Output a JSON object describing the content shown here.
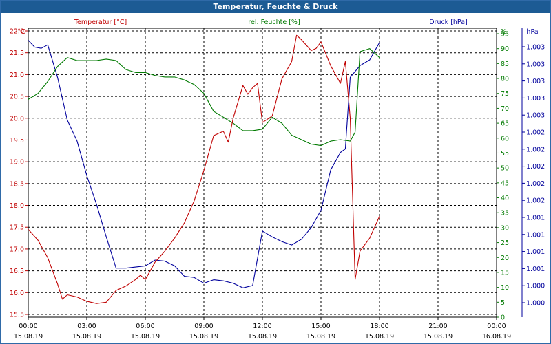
{
  "window": {
    "title": "Temperatur, Feuchte & Druck"
  },
  "colors": {
    "temperature": "#c00000",
    "humidity": "#007a00",
    "pressure": "#00009c",
    "grid": "#000000"
  },
  "chart_data": {
    "type": "line",
    "title": "Temperatur, Feuchte & Druck",
    "grid": true,
    "x_axis": {
      "range": [
        "00:00",
        "24:00"
      ],
      "ticks": [
        {
          "time": "00:00",
          "date": "15.08.19"
        },
        {
          "time": "03:00",
          "date": "15.08.19"
        },
        {
          "time": "06:00",
          "date": "15.08.19"
        },
        {
          "time": "09:00",
          "date": "15.08.19"
        },
        {
          "time": "12:00",
          "date": "15.08.19"
        },
        {
          "time": "15:00",
          "date": "15.08.19"
        },
        {
          "time": "18:00",
          "date": "15.08.19"
        },
        {
          "time": "21:00",
          "date": "15.08.19"
        },
        {
          "time": "00:00",
          "date": "16.08.19"
        }
      ]
    },
    "axes": {
      "temperature": {
        "label": "Temperatur [°C]",
        "unit": "°C",
        "side": "left",
        "range": [
          15.5,
          22.0
        ],
        "ticks": [
          "15.5",
          "16.0",
          "16.5",
          "17.0",
          "17.5",
          "18.0",
          "18.5",
          "19.0",
          "19.5",
          "20.0",
          "20.5",
          "21.0",
          "21.5",
          "22.0"
        ]
      },
      "humidity": {
        "label": "rel. Feuchte [%]",
        "unit": "%",
        "side": "right",
        "range": [
          0,
          95
        ],
        "ticks": [
          "0",
          "5",
          "10",
          "15",
          "20",
          "25",
          "30",
          "35",
          "40",
          "45",
          "50",
          "55",
          "60",
          "65",
          "70",
          "75",
          "80",
          "85",
          "90",
          "95"
        ]
      },
      "pressure": {
        "label": "Druck [hPa]",
        "unit": "hPa",
        "side": "right-outer",
        "ticks": [
          "1.000",
          "1.000",
          "1.001",
          "1.001",
          "1.001",
          "1.001",
          "1.002",
          "1.002",
          "1.002",
          "1.002",
          "1.002",
          "1.003",
          "1.003",
          "1.003",
          "1.003",
          "1.003"
        ]
      }
    },
    "series": [
      {
        "name": "Temperatur [°C]",
        "axis": "temperature",
        "x": [
          "00:00",
          "00:30",
          "01:00",
          "01:30",
          "01:45",
          "02:00",
          "02:30",
          "03:00",
          "03:30",
          "04:00",
          "04:30",
          "05:00",
          "05:30",
          "05:45",
          "06:00",
          "06:30",
          "07:00",
          "07:30",
          "08:00",
          "08:30",
          "09:00",
          "09:30",
          "10:00",
          "10:15",
          "10:30",
          "11:00",
          "11:15",
          "11:30",
          "11:45",
          "12:00",
          "12:30",
          "13:00",
          "13:30",
          "13:45",
          "14:00",
          "14:30",
          "14:45",
          "15:00",
          "15:30",
          "16:00",
          "16:15",
          "16:30",
          "16:45",
          "17:00",
          "17:30",
          "18:00"
        ],
        "values": [
          17.45,
          17.2,
          16.8,
          16.2,
          15.85,
          15.95,
          15.9,
          15.8,
          15.75,
          15.78,
          16.05,
          16.15,
          16.3,
          16.4,
          16.3,
          16.7,
          16.95,
          17.25,
          17.6,
          18.1,
          18.8,
          19.6,
          19.7,
          19.45,
          20.0,
          20.75,
          20.55,
          20.7,
          20.8,
          19.9,
          20.05,
          20.9,
          21.3,
          21.9,
          21.8,
          21.55,
          21.6,
          21.75,
          21.2,
          20.8,
          21.3,
          20.0,
          16.3,
          16.95,
          17.25,
          17.75
        ]
      },
      {
        "name": "rel. Feuchte [%]",
        "axis": "humidity",
        "x": [
          "00:00",
          "00:30",
          "01:00",
          "01:30",
          "02:00",
          "02:30",
          "03:00",
          "03:30",
          "04:00",
          "04:30",
          "05:00",
          "05:30",
          "06:00",
          "06:30",
          "07:00",
          "07:30",
          "08:00",
          "08:30",
          "09:00",
          "09:30",
          "10:00",
          "10:30",
          "11:00",
          "11:30",
          "12:00",
          "12:30",
          "13:00",
          "13:30",
          "14:00",
          "14:30",
          "15:00",
          "15:30",
          "16:00",
          "16:30",
          "16:45",
          "17:00",
          "17:30",
          "18:00"
        ],
        "values": [
          73,
          75,
          79,
          84,
          87,
          86,
          86,
          86,
          86.5,
          86,
          83,
          82,
          82,
          81,
          80.5,
          80.5,
          79.5,
          78,
          75,
          69,
          67,
          65,
          62.5,
          62.5,
          63,
          67,
          65,
          61,
          59.5,
          58,
          57.5,
          59,
          59.5,
          59,
          62,
          89,
          90,
          87
        ]
      },
      {
        "name": "Druck [hPa]",
        "axis": "pressure",
        "x": [
          "00:00",
          "00:20",
          "00:40",
          "01:00",
          "01:30",
          "02:00",
          "02:30",
          "03:00",
          "03:30",
          "04:00",
          "04:30",
          "05:00",
          "05:30",
          "06:00",
          "06:30",
          "07:00",
          "07:30",
          "08:00",
          "08:30",
          "09:00",
          "09:30",
          "10:00",
          "10:30",
          "11:00",
          "11:30",
          "12:00",
          "12:30",
          "13:00",
          "13:30",
          "14:00",
          "14:30",
          "15:00",
          "15:30",
          "16:00",
          "16:15",
          "16:30",
          "17:00",
          "17:30",
          "18:00"
        ],
        "values": [
          1003.12,
          1003.06,
          1003.05,
          1003.08,
          1002.8,
          1002.43,
          1002.25,
          1001.95,
          1001.7,
          1001.42,
          1001.15,
          1001.15,
          1001.16,
          1001.17,
          1001.22,
          1001.21,
          1001.17,
          1001.08,
          1001.07,
          1001.02,
          1001.05,
          1001.04,
          1001.02,
          1000.98,
          1001.0,
          1001.47,
          1001.42,
          1001.38,
          1001.35,
          1001.4,
          1001.5,
          1001.65,
          1002.0,
          1002.15,
          1002.18,
          1002.8,
          1002.9,
          1002.95,
          1003.1
        ]
      }
    ]
  }
}
